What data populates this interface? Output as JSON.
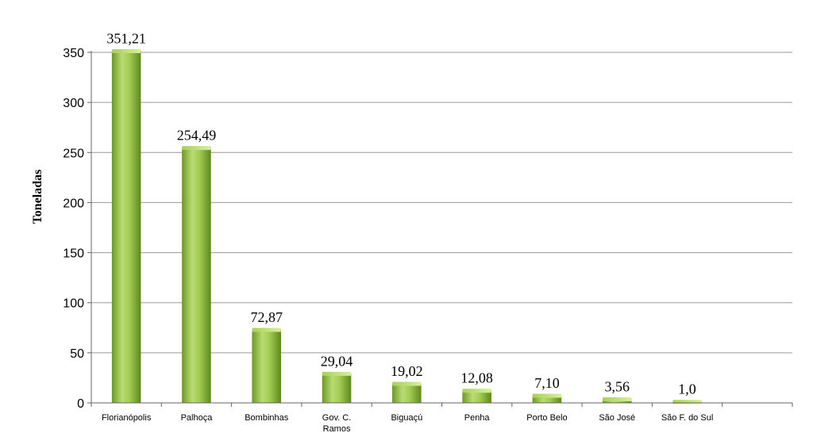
{
  "chart_data": {
    "type": "bar",
    "categories": [
      "Florianópolis",
      "Palhoça",
      "Bombinhas",
      "Gov. C. Ramos",
      "Biguaçú",
      "Penha",
      "Porto Belo",
      "São José",
      "São F. do Sul"
    ],
    "values": [
      351.21,
      254.49,
      72.87,
      29.04,
      19.02,
      12.08,
      7.1,
      3.56,
      1.0
    ],
    "data_labels": [
      "351,21",
      "254,49",
      "72,87",
      "29,04",
      "19,02",
      "12,08",
      "7,10",
      "3,56",
      "1,0"
    ],
    "ylabel": "Toneladas",
    "ylim": [
      0,
      350
    ],
    "yticks": [
      0,
      50,
      100,
      150,
      200,
      250,
      300,
      350
    ],
    "grid": true,
    "legend": "none",
    "colors": {
      "bar_light": "#b5d96a",
      "bar_mid": "#8fbf3a",
      "bar_dark": "#5e8a1f",
      "grid": "#9a9a9a"
    }
  }
}
